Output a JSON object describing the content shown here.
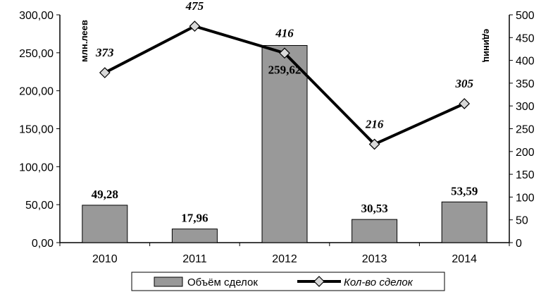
{
  "chart_data": {
    "type": "bar+line",
    "categories": [
      "2010",
      "2011",
      "2012",
      "2013",
      "2014"
    ],
    "series": [
      {
        "name": "Объём сделок",
        "type": "bar",
        "axis": "left",
        "values": [
          49.28,
          17.96,
          259.62,
          30.53,
          53.59
        ],
        "labels": [
          "49,28",
          "17,96",
          "259,62",
          "30,53",
          "53,59"
        ],
        "color": "#999999"
      },
      {
        "name": "Кол-во сделок",
        "type": "line",
        "axis": "right",
        "values": [
          373,
          475,
          416,
          216,
          305
        ],
        "labels": [
          "373",
          "475",
          "416",
          "216",
          "305"
        ],
        "color": "#000000",
        "marker": "diamond"
      }
    ],
    "y_left": {
      "label": "млн.леев",
      "min": 0,
      "max": 300,
      "step": 50,
      "ticks": [
        "0,00",
        "50,00",
        "100,00",
        "150,00",
        "200,00",
        "250,00",
        "300,00"
      ]
    },
    "y_right": {
      "label": "единиц",
      "min": 0,
      "max": 500,
      "step": 50,
      "ticks": [
        "0",
        "50",
        "100",
        "150",
        "200",
        "250",
        "300",
        "350",
        "400",
        "450",
        "500"
      ]
    },
    "legend": {
      "position": "bottom"
    },
    "grid": false
  }
}
